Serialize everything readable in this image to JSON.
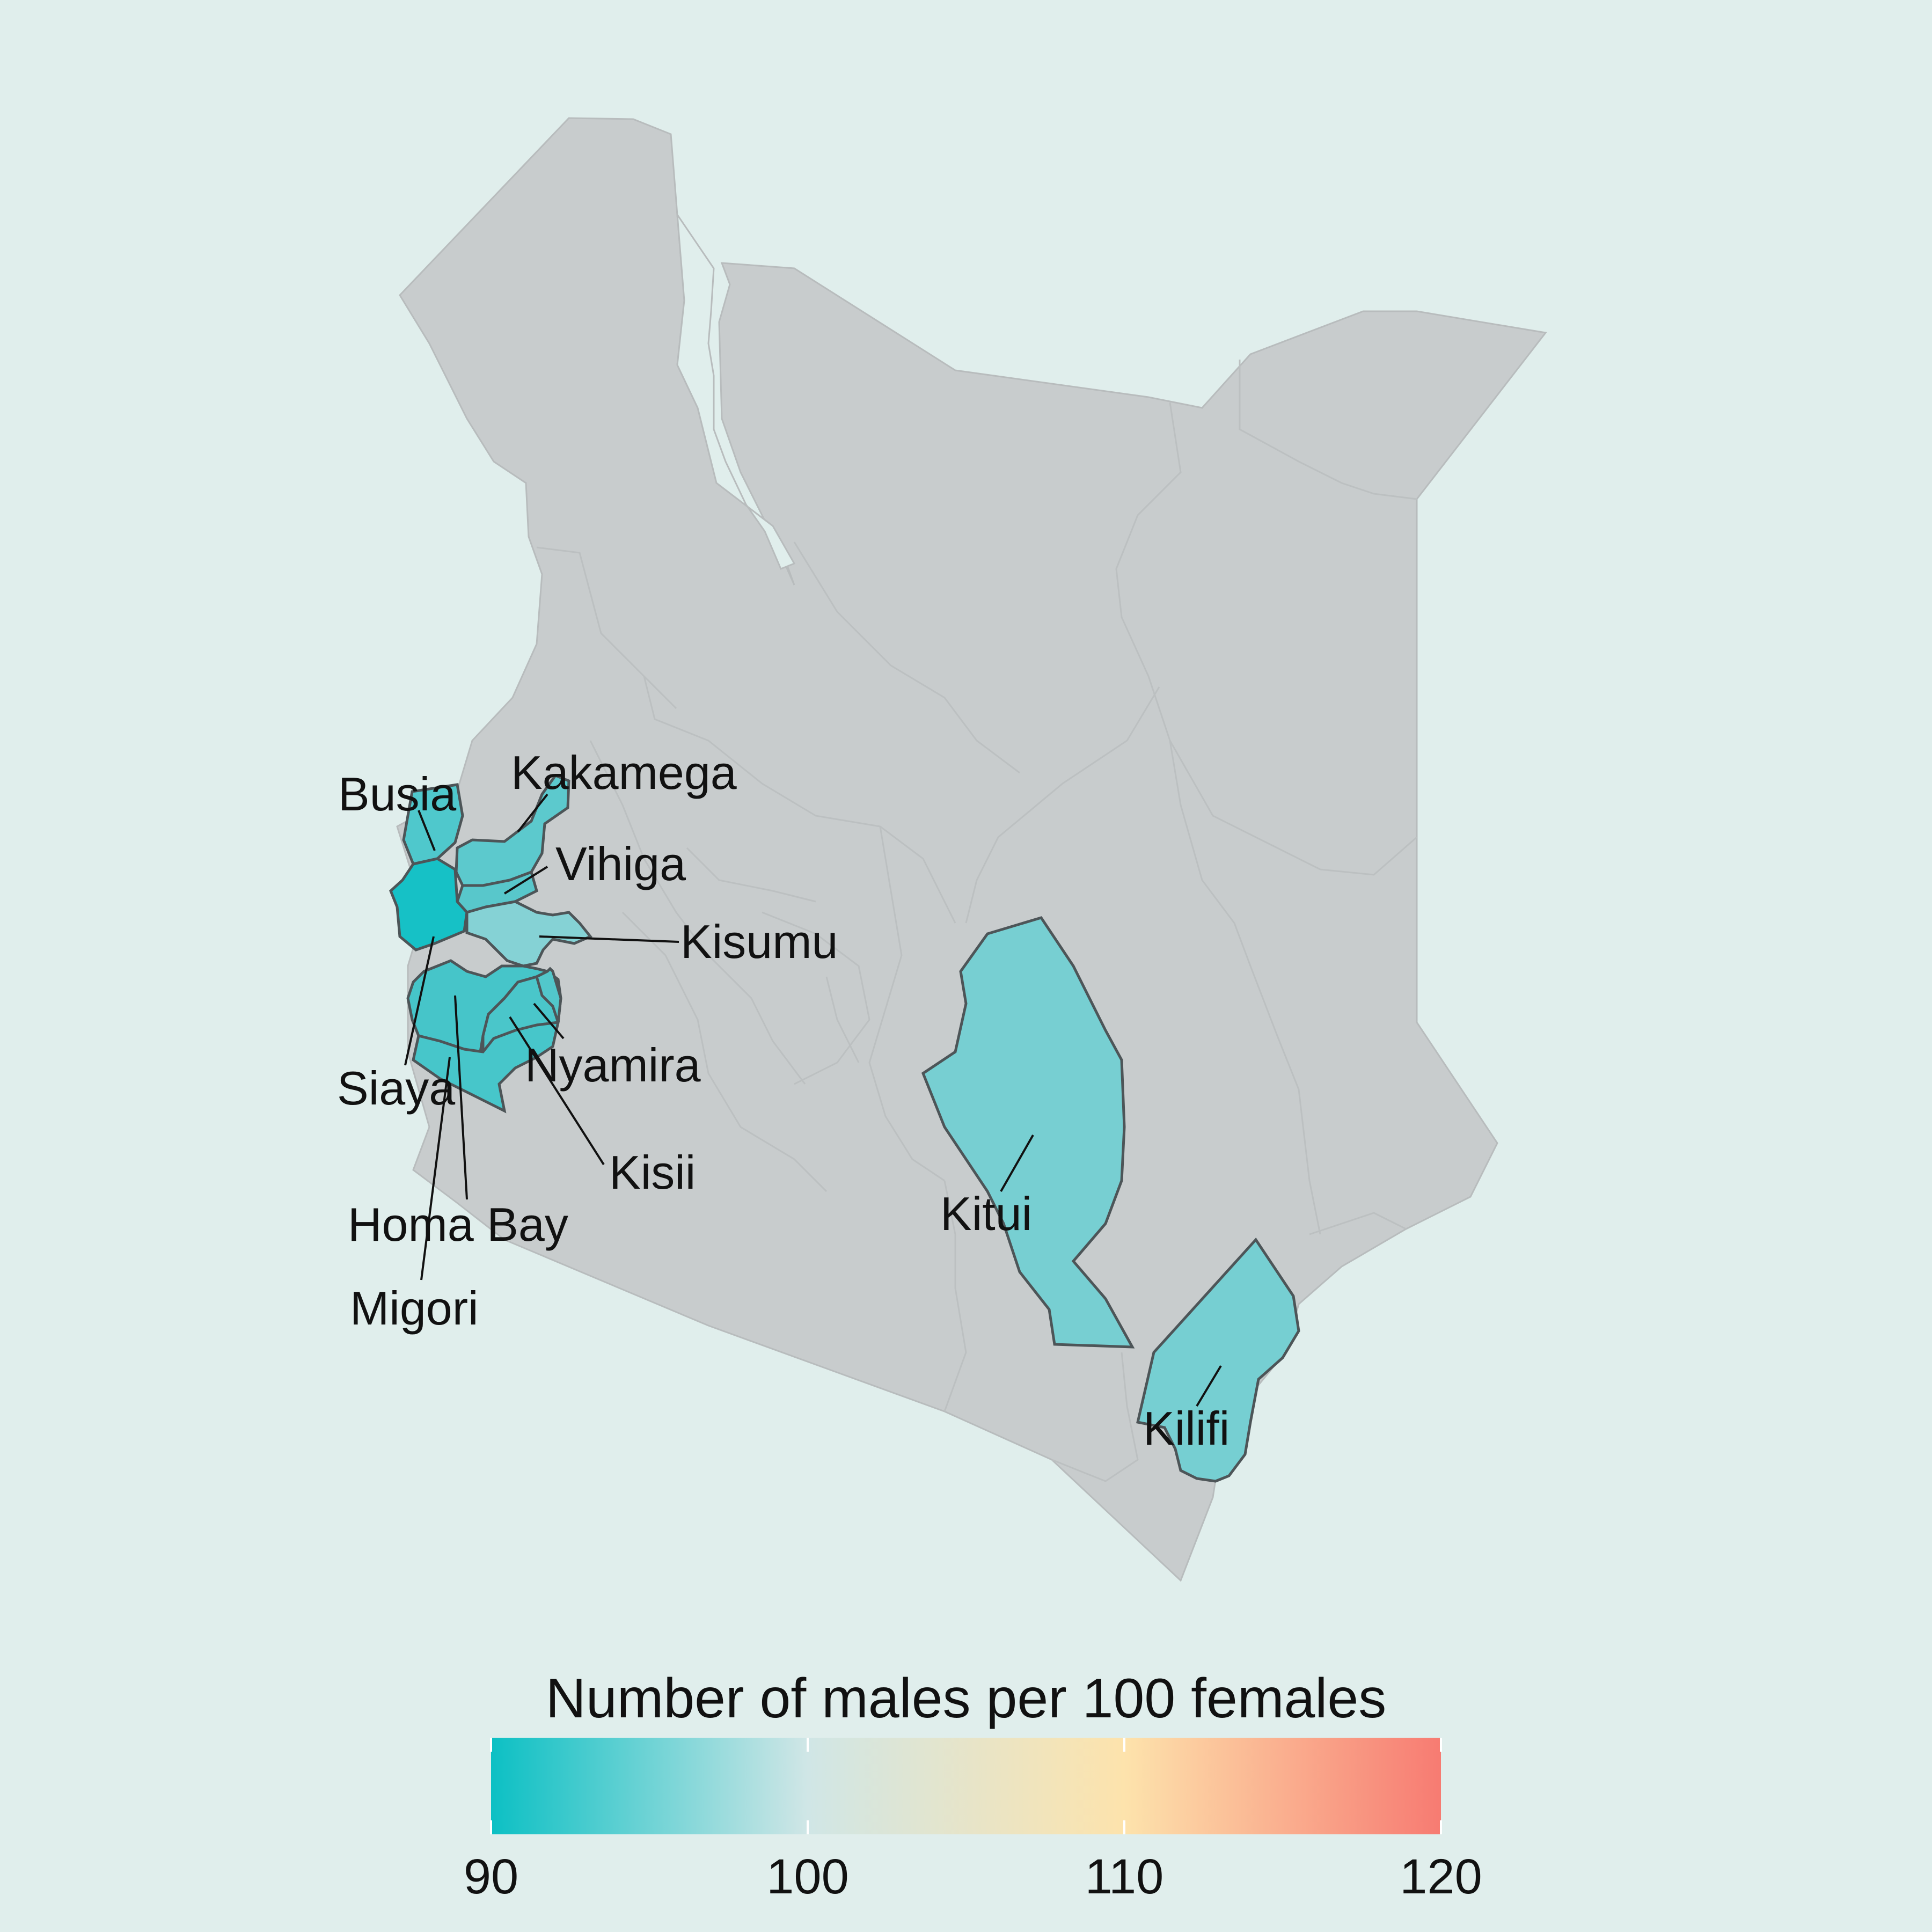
{
  "map": {
    "background_color": "#e0eeec",
    "base_fill": "#c8cccd",
    "highlighted_counties": [
      {
        "name": "Busia",
        "label": "Busia",
        "color": "#4fc8cc"
      },
      {
        "name": "Kakamega",
        "label": "Kakamega",
        "color": "#5cc9cd"
      },
      {
        "name": "Vihiga",
        "label": "Vihiga",
        "color": "#58c7cb"
      },
      {
        "name": "Kisumu",
        "label": "Kisumu",
        "color": "#85d2d5"
      },
      {
        "name": "Siaya",
        "label": "Siaya",
        "color": "#16c1c6"
      },
      {
        "name": "Homa Bay",
        "label": "Homa Bay",
        "color": "#46c5c9"
      },
      {
        "name": "Migori",
        "label": "Migori",
        "color": "#47c6ca"
      },
      {
        "name": "Kisii",
        "label": "Kisii",
        "color": "#4ac6ca"
      },
      {
        "name": "Nyamira",
        "label": "Nyamira",
        "color": "#52c7cb"
      },
      {
        "name": "Kitui",
        "label": "Kitui",
        "color": "#77cfd2"
      },
      {
        "name": "Kilifi",
        "label": "Kilifi",
        "color": "#76cfd2"
      }
    ]
  },
  "legend": {
    "title": "Number of males per 100 females",
    "min": 90,
    "max": 120,
    "ticks": [
      {
        "value": 90,
        "label": "90"
      },
      {
        "value": 100,
        "label": "100"
      },
      {
        "value": 110,
        "label": "110"
      },
      {
        "value": 120,
        "label": "120"
      }
    ],
    "gradient_stops": [
      {
        "value": 90,
        "color": "#0cc0c4"
      },
      {
        "value": 100,
        "color": "#d0e6e6"
      },
      {
        "value": 110,
        "color": "#fde3ac"
      },
      {
        "value": 120,
        "color": "#f77b72"
      }
    ]
  }
}
